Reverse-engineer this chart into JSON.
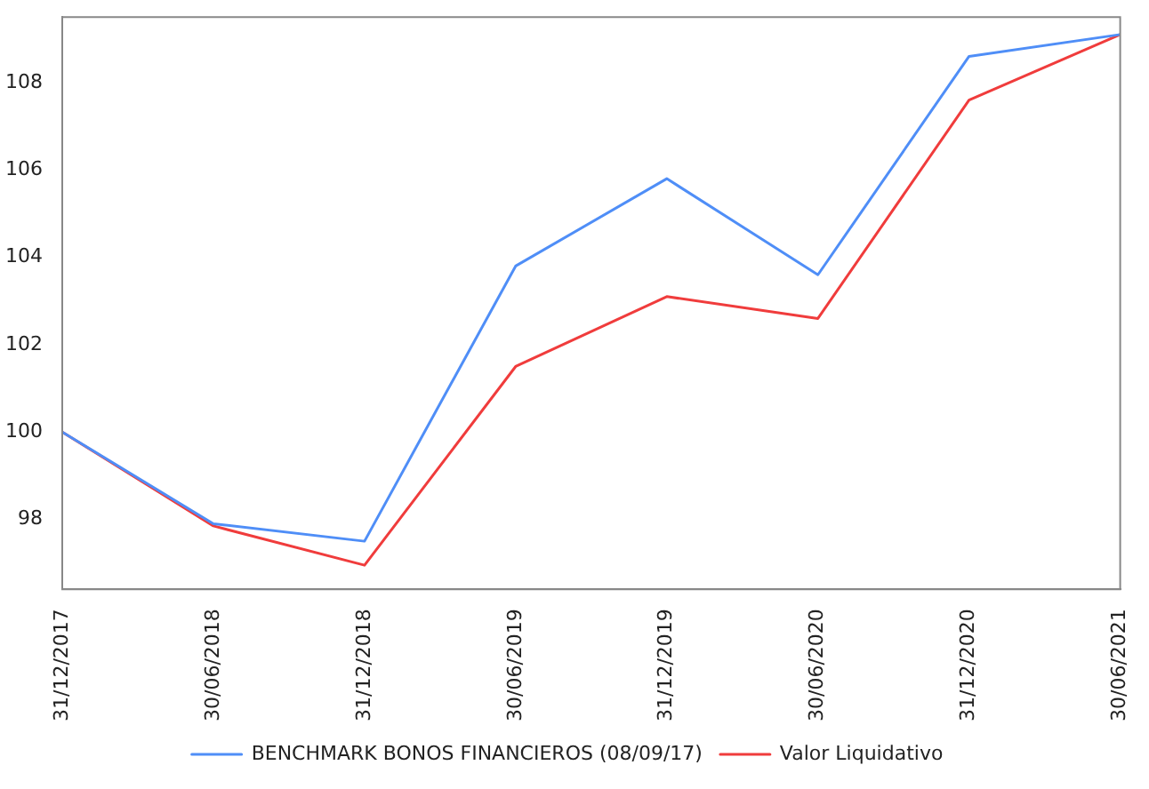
{
  "chart_data": {
    "type": "line",
    "categories": [
      "31/12/2017",
      "30/06/2018",
      "31/12/2018",
      "30/06/2019",
      "31/12/2019",
      "30/06/2020",
      "31/12/2020",
      "30/06/2021"
    ],
    "series": [
      {
        "name": "BENCHMARK BONOS FINANCIEROS (08/09/17)",
        "color": "#4f8ef7",
        "values": [
          100,
          97.9,
          97.5,
          103.8,
          105.8,
          103.6,
          108.6,
          109.1
        ]
      },
      {
        "name": "Valor Liquidativo",
        "color": "#f03c3c",
        "values": [
          100,
          97.85,
          96.95,
          101.5,
          103.1,
          102.6,
          107.6,
          109.1
        ]
      }
    ],
    "ylim": [
      96.4,
      109.5
    ],
    "yticks": [
      98,
      100,
      102,
      104,
      106,
      108
    ],
    "grid": false,
    "legend": "bottom",
    "marker": "none"
  }
}
